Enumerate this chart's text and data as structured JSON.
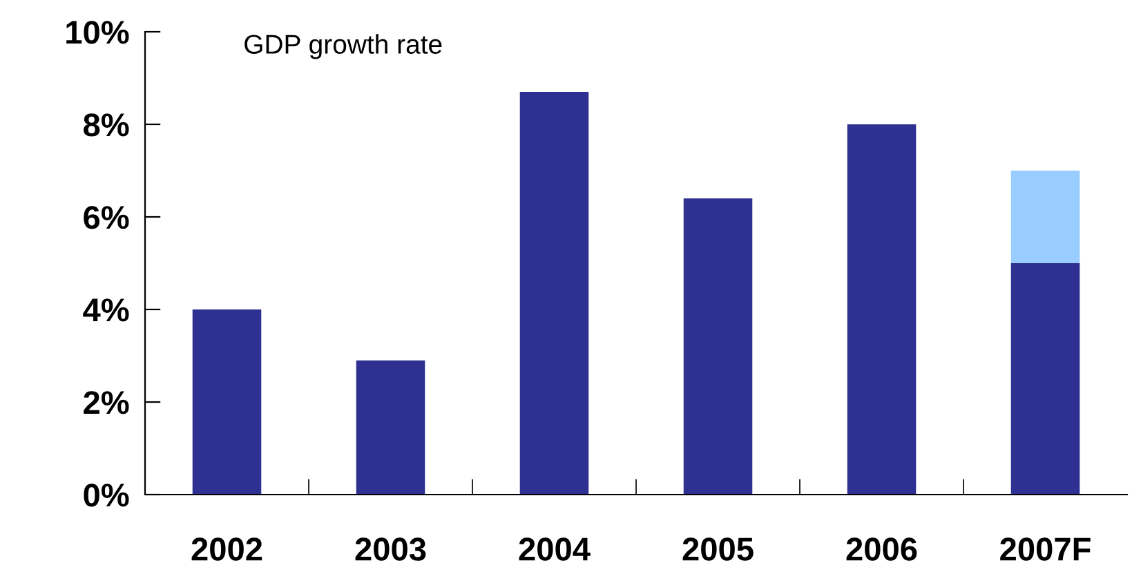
{
  "chart_data": {
    "type": "bar",
    "title": "GDP growth rate",
    "stacked": true,
    "categories": [
      "2002",
      "2003",
      "2004",
      "2005",
      "2006",
      "2007F"
    ],
    "series": [
      {
        "color": "#2e3192",
        "values": [
          4.0,
          2.9,
          8.7,
          6.4,
          8.0,
          5.0
        ]
      },
      {
        "color": "#99ccff",
        "values": [
          null,
          null,
          null,
          null,
          null,
          2.0
        ]
      }
    ],
    "ylim": [
      0,
      10
    ],
    "yticks": [
      {
        "value": 0,
        "label": "0%"
      },
      {
        "value": 2,
        "label": "2%"
      },
      {
        "value": 4,
        "label": "4%"
      },
      {
        "value": 6,
        "label": "6%"
      },
      {
        "value": 8,
        "label": "8%"
      },
      {
        "value": 10,
        "label": "10%"
      }
    ],
    "grid": false,
    "legend": false
  }
}
